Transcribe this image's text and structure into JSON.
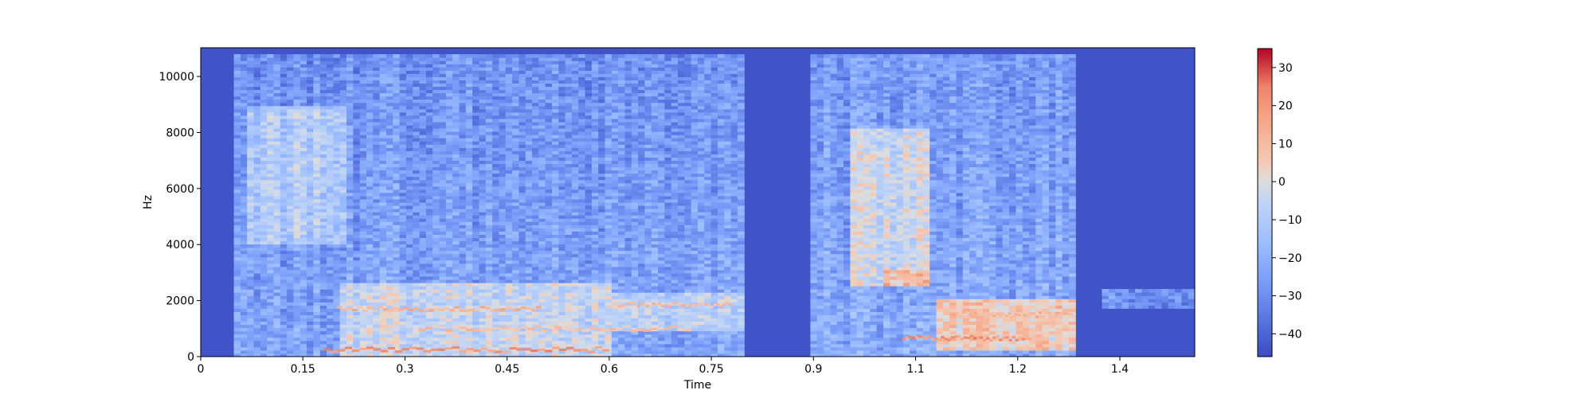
{
  "chart_data": {
    "type": "heatmap",
    "title": "",
    "xlabel": "Time",
    "ylabel": "Hz",
    "xlim": [
      0,
      1.46
    ],
    "ylim": [
      0,
      11025
    ],
    "x_ticks": [
      {
        "value": 0,
        "label": "0"
      },
      {
        "value": 0.15,
        "label": "0.15"
      },
      {
        "value": 0.3,
        "label": "0.3"
      },
      {
        "value": 0.45,
        "label": "0.45"
      },
      {
        "value": 0.6,
        "label": "0.6"
      },
      {
        "value": 0.75,
        "label": "0.75"
      },
      {
        "value": 0.9,
        "label": "0.9"
      },
      {
        "value": 1.05,
        "label": "1.1"
      },
      {
        "value": 1.2,
        "label": "1.2"
      },
      {
        "value": 1.35,
        "label": "1.4"
      }
    ],
    "y_ticks": [
      {
        "value": 0,
        "label": "0"
      },
      {
        "value": 2000,
        "label": "2000"
      },
      {
        "value": 4000,
        "label": "4000"
      },
      {
        "value": 6000,
        "label": "6000"
      },
      {
        "value": 8000,
        "label": "8000"
      },
      {
        "value": 10000,
        "label": "10000"
      }
    ],
    "colorbar": {
      "colormap": "coolwarm",
      "range": [
        -46,
        35
      ],
      "ticks": [
        {
          "value": 30,
          "label": "30"
        },
        {
          "value": 20,
          "label": "20"
        },
        {
          "value": 10,
          "label": "10"
        },
        {
          "value": 0,
          "label": "0"
        },
        {
          "value": -10,
          "label": "−10"
        },
        {
          "value": -20,
          "label": "−20"
        },
        {
          "value": -30,
          "label": "−30"
        },
        {
          "value": -40,
          "label": "−40"
        }
      ]
    },
    "background_level": -44,
    "grid": false,
    "segments": [
      {
        "t_start": 0.045,
        "t_end": 0.8,
        "f_top": 10800,
        "level": -23
      },
      {
        "t_start": 0.9,
        "t_end": 1.28,
        "f_top": 10800,
        "level": -21
      }
    ],
    "hot_regions": [
      {
        "t_start": 0.07,
        "t_end": 0.21,
        "f_low": 4000,
        "f_high": 9000,
        "level": -10
      },
      {
        "t_start": 0.2,
        "t_end": 0.6,
        "f_low": 0,
        "f_high": 2600,
        "level": -5
      },
      {
        "t_start": 0.6,
        "t_end": 0.8,
        "f_low": 900,
        "f_high": 2300,
        "level": -8
      },
      {
        "t_start": 0.95,
        "t_end": 1.07,
        "f_low": 2500,
        "f_high": 8200,
        "level": -4
      },
      {
        "t_start": 1.0,
        "t_end": 1.07,
        "f_low": 2500,
        "f_high": 3100,
        "level": 10
      },
      {
        "t_start": 1.08,
        "t_end": 1.28,
        "f_low": 200,
        "f_high": 2100,
        "level": 6
      }
    ],
    "formant_lines": [
      {
        "t_start": 0.18,
        "t_end": 0.6,
        "freq": 250,
        "level": 20
      },
      {
        "t_start": 0.2,
        "t_end": 0.5,
        "freq": 1700,
        "level": 12
      },
      {
        "t_start": 0.6,
        "t_end": 0.78,
        "freq": 1850,
        "level": 10
      },
      {
        "t_start": 0.32,
        "t_end": 0.72,
        "freq": 1000,
        "level": 8
      },
      {
        "t_start": 1.03,
        "t_end": 1.22,
        "freq": 650,
        "level": 20
      },
      {
        "t_start": 1.1,
        "t_end": 1.28,
        "freq": 1500,
        "level": 12
      }
    ],
    "tail_noise": [
      {
        "t_start": 1.32,
        "t_end": 1.46,
        "f_low": 1700,
        "f_high": 2400,
        "level": -28
      }
    ]
  }
}
